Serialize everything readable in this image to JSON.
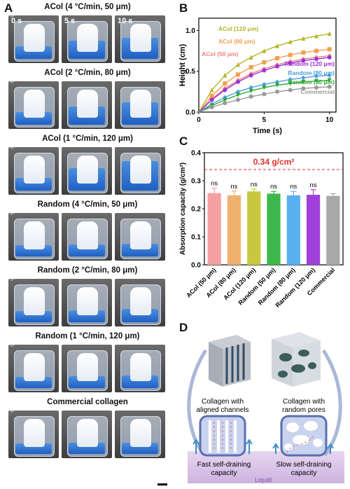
{
  "panels": {
    "a": "A",
    "b": "B",
    "c": "C",
    "d": "D"
  },
  "panel_a": {
    "time_labels": [
      "0 s",
      "5 s",
      "10 s"
    ],
    "rows": [
      {
        "title": "ACol (4 °C/min, 50 μm)"
      },
      {
        "title": "ACol (2 °C/min, 80 μm)"
      },
      {
        "title": "ACol (1 °C/min, 120 μm)"
      },
      {
        "title": "Random (4 °C/min, 50 μm)"
      },
      {
        "title": "Random (2 °C/min, 80 μm)"
      },
      {
        "title": "Random (1 °C/min, 120 μm)"
      },
      {
        "title": "Commercial collagen"
      }
    ],
    "fill_levels": [
      [
        0.25,
        0.45,
        0.55
      ],
      [
        0.25,
        0.45,
        0.6
      ],
      [
        0.25,
        0.6,
        0.85
      ],
      [
        0.2,
        0.22,
        0.25
      ],
      [
        0.2,
        0.22,
        0.28
      ],
      [
        0.2,
        0.22,
        0.25
      ],
      [
        0.18,
        0.2,
        0.2
      ]
    ]
  },
  "chart_data": [
    {
      "type": "line",
      "xlabel": "Time (s)",
      "ylabel": "Height (cm)",
      "xlim": [
        0,
        10.5
      ],
      "ylim": [
        0,
        1.15
      ],
      "xticks": [
        "0",
        "5",
        "10"
      ],
      "yticks": [
        "0.0",
        "0.5",
        "1.0"
      ],
      "x": [
        0,
        1,
        2,
        3,
        4,
        5,
        6,
        7,
        8,
        9,
        10
      ],
      "series": [
        {
          "name": "ACol (120 μm)",
          "color": "#b5b52a",
          "marker": "triangle",
          "values": [
            0.0,
            0.27,
            0.45,
            0.58,
            0.67,
            0.75,
            0.81,
            0.86,
            0.9,
            0.93,
            0.96
          ]
        },
        {
          "name": "ACol (80 μm)",
          "color": "#f0a050",
          "marker": "square",
          "values": [
            0.0,
            0.2,
            0.35,
            0.46,
            0.55,
            0.61,
            0.66,
            0.7,
            0.73,
            0.75,
            0.77
          ]
        },
        {
          "name": "ACol (50 μm)",
          "color": "#f08080",
          "marker": "diamond",
          "values": [
            0.0,
            0.16,
            0.29,
            0.39,
            0.47,
            0.53,
            0.58,
            0.62,
            0.65,
            0.67,
            0.69
          ]
        },
        {
          "name": "Random (120 μm)",
          "color": "#9b2fd6",
          "marker": "star",
          "values": [
            0.0,
            0.15,
            0.27,
            0.37,
            0.45,
            0.51,
            0.56,
            0.6,
            0.63,
            0.65,
            0.67
          ]
        },
        {
          "name": "Random (80 μm)",
          "color": "#4a9de0",
          "marker": "diamond",
          "values": [
            0.0,
            0.1,
            0.18,
            0.25,
            0.3,
            0.34,
            0.37,
            0.4,
            0.42,
            0.44,
            0.45
          ]
        },
        {
          "name": "Random (50 μm)",
          "color": "#2ea836",
          "marker": "triangle-down",
          "values": [
            0.0,
            0.08,
            0.15,
            0.21,
            0.26,
            0.3,
            0.33,
            0.35,
            0.37,
            0.38,
            0.39
          ]
        },
        {
          "name": "Commercial",
          "color": "#999999",
          "marker": "circle",
          "values": [
            0.0,
            0.06,
            0.11,
            0.15,
            0.19,
            0.22,
            0.25,
            0.27,
            0.29,
            0.3,
            0.31
          ]
        }
      ]
    },
    {
      "type": "bar",
      "ylabel": "Absorption capacity (g/cm²)",
      "ylim": [
        0,
        0.4
      ],
      "yticks": [
        "0.0",
        "0.1",
        "0.2",
        "0.3",
        "0.4"
      ],
      "categories": [
        "ACol (50 μm)",
        "ACol (80 μm)",
        "ACol (120 μm)",
        "Random (50 μm)",
        "Random (80 μm)",
        "Random (120 μm)",
        "Commercial"
      ],
      "values": [
        0.256,
        0.248,
        0.262,
        0.254,
        0.248,
        0.25,
        0.246
      ],
      "errors": [
        0.018,
        0.015,
        0.008,
        0.008,
        0.014,
        0.018,
        0.008
      ],
      "colors": [
        "#f4a0a0",
        "#f0b070",
        "#c8c840",
        "#3cb84a",
        "#5ab0f0",
        "#a040d8",
        "#a8a8a8"
      ],
      "significance": [
        "ns",
        "ns",
        "ns",
        "ns",
        "ns",
        "ns"
      ],
      "reference_line": {
        "value": 0.34,
        "label": "0.34 g/cm²",
        "color": "#e03030"
      }
    }
  ],
  "panel_d": {
    "left_label": [
      "Collagen with",
      "aligned channels"
    ],
    "right_label": [
      "Collagen with",
      "random pores"
    ],
    "left_caption": [
      "Fast self-draining",
      "capacity"
    ],
    "right_caption": [
      "Slow self-draining",
      "capacity"
    ],
    "liquid_label": "Liquid"
  }
}
